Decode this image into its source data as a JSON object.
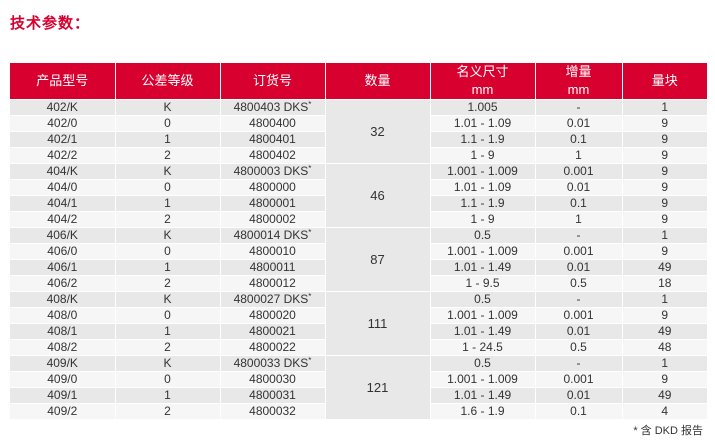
{
  "title": "技术参数：",
  "columns": [
    {
      "label": "产品型号",
      "unit": ""
    },
    {
      "label": "公差等级",
      "unit": ""
    },
    {
      "label": "订货号",
      "unit": ""
    },
    {
      "label": "数量",
      "unit": ""
    },
    {
      "label": "名义尺寸",
      "unit": "mm"
    },
    {
      "label": "增量",
      "unit": "mm"
    },
    {
      "label": "量块",
      "unit": ""
    }
  ],
  "groups": [
    {
      "quantity": "32",
      "rows": [
        {
          "model": "402/K",
          "grade": "K",
          "order": "4800403 DKS",
          "dks": true,
          "size": "1.005",
          "inc": "-",
          "blocks": "1"
        },
        {
          "model": "402/0",
          "grade": "0",
          "order": "4800400",
          "dks": false,
          "size": "1.01 - 1.09",
          "inc": "0.01",
          "blocks": "9"
        },
        {
          "model": "402/1",
          "grade": "1",
          "order": "4800401",
          "dks": false,
          "size": "1.1 - 1.9",
          "inc": "0.1",
          "blocks": "9"
        },
        {
          "model": "402/2",
          "grade": "2",
          "order": "4800402",
          "dks": false,
          "size": "1 - 9",
          "inc": "1",
          "blocks": "9"
        }
      ]
    },
    {
      "quantity": "46",
      "rows": [
        {
          "model": "404/K",
          "grade": "K",
          "order": "4800003 DKS",
          "dks": true,
          "size": "1.001 - 1.009",
          "inc": "0.001",
          "blocks": "9"
        },
        {
          "model": "404/0",
          "grade": "0",
          "order": "4800000",
          "dks": false,
          "size": "1.01 - 1.09",
          "inc": "0.01",
          "blocks": "9"
        },
        {
          "model": "404/1",
          "grade": "1",
          "order": "4800001",
          "dks": false,
          "size": "1.1 - 1.9",
          "inc": "0.1",
          "blocks": "9"
        },
        {
          "model": "404/2",
          "grade": "2",
          "order": "4800002",
          "dks": false,
          "size": "1 - 9",
          "inc": "1",
          "blocks": "9"
        }
      ]
    },
    {
      "quantity": "87",
      "rows": [
        {
          "model": "406/K",
          "grade": "K",
          "order": "4800014 DKS",
          "dks": true,
          "size": "0.5",
          "inc": "-",
          "blocks": "1"
        },
        {
          "model": "406/0",
          "grade": "0",
          "order": "4800010",
          "dks": false,
          "size": "1.001 - 1.009",
          "inc": "0.001",
          "blocks": "9"
        },
        {
          "model": "406/1",
          "grade": "1",
          "order": "4800011",
          "dks": false,
          "size": "1.01 - 1.49",
          "inc": "0.01",
          "blocks": "49"
        },
        {
          "model": "406/2",
          "grade": "2",
          "order": "4800012",
          "dks": false,
          "size": "1 - 9.5",
          "inc": "0.5",
          "blocks": "18"
        }
      ]
    },
    {
      "quantity": "111",
      "rows": [
        {
          "model": "408/K",
          "grade": "K",
          "order": "4800027 DKS",
          "dks": true,
          "size": "0.5",
          "inc": "-",
          "blocks": "1"
        },
        {
          "model": "408/0",
          "grade": "0",
          "order": "4800020",
          "dks": false,
          "size": "1.001 - 1.009",
          "inc": "0.001",
          "blocks": "9"
        },
        {
          "model": "408/1",
          "grade": "1",
          "order": "4800021",
          "dks": false,
          "size": "1.01 - 1.49",
          "inc": "0.01",
          "blocks": "49"
        },
        {
          "model": "408/2",
          "grade": "2",
          "order": "4800022",
          "dks": false,
          "size": "1 - 24.5",
          "inc": "0.5",
          "blocks": "48"
        }
      ]
    },
    {
      "quantity": "121",
      "rows": [
        {
          "model": "409/K",
          "grade": "K",
          "order": "4800033 DKS",
          "dks": true,
          "size": "0.5",
          "inc": "-",
          "blocks": "1"
        },
        {
          "model": "409/0",
          "grade": "0",
          "order": "4800030",
          "dks": false,
          "size": "1.001 - 1.009",
          "inc": "0.001",
          "blocks": "9"
        },
        {
          "model": "409/1",
          "grade": "1",
          "order": "4800031",
          "dks": false,
          "size": "1.01 - 1.49",
          "inc": "0.01",
          "blocks": "49"
        },
        {
          "model": "409/2",
          "grade": "2",
          "order": "4800032",
          "dks": false,
          "size": "1.6 - 1.9",
          "inc": "0.1",
          "blocks": "4"
        }
      ]
    }
  ],
  "asterisk": "*",
  "footnote": "* 含 DKD 报告",
  "colors": {
    "header": "#d7002f",
    "row_odd": "#e8e8e8",
    "row_even": "#f6f6f6"
  }
}
